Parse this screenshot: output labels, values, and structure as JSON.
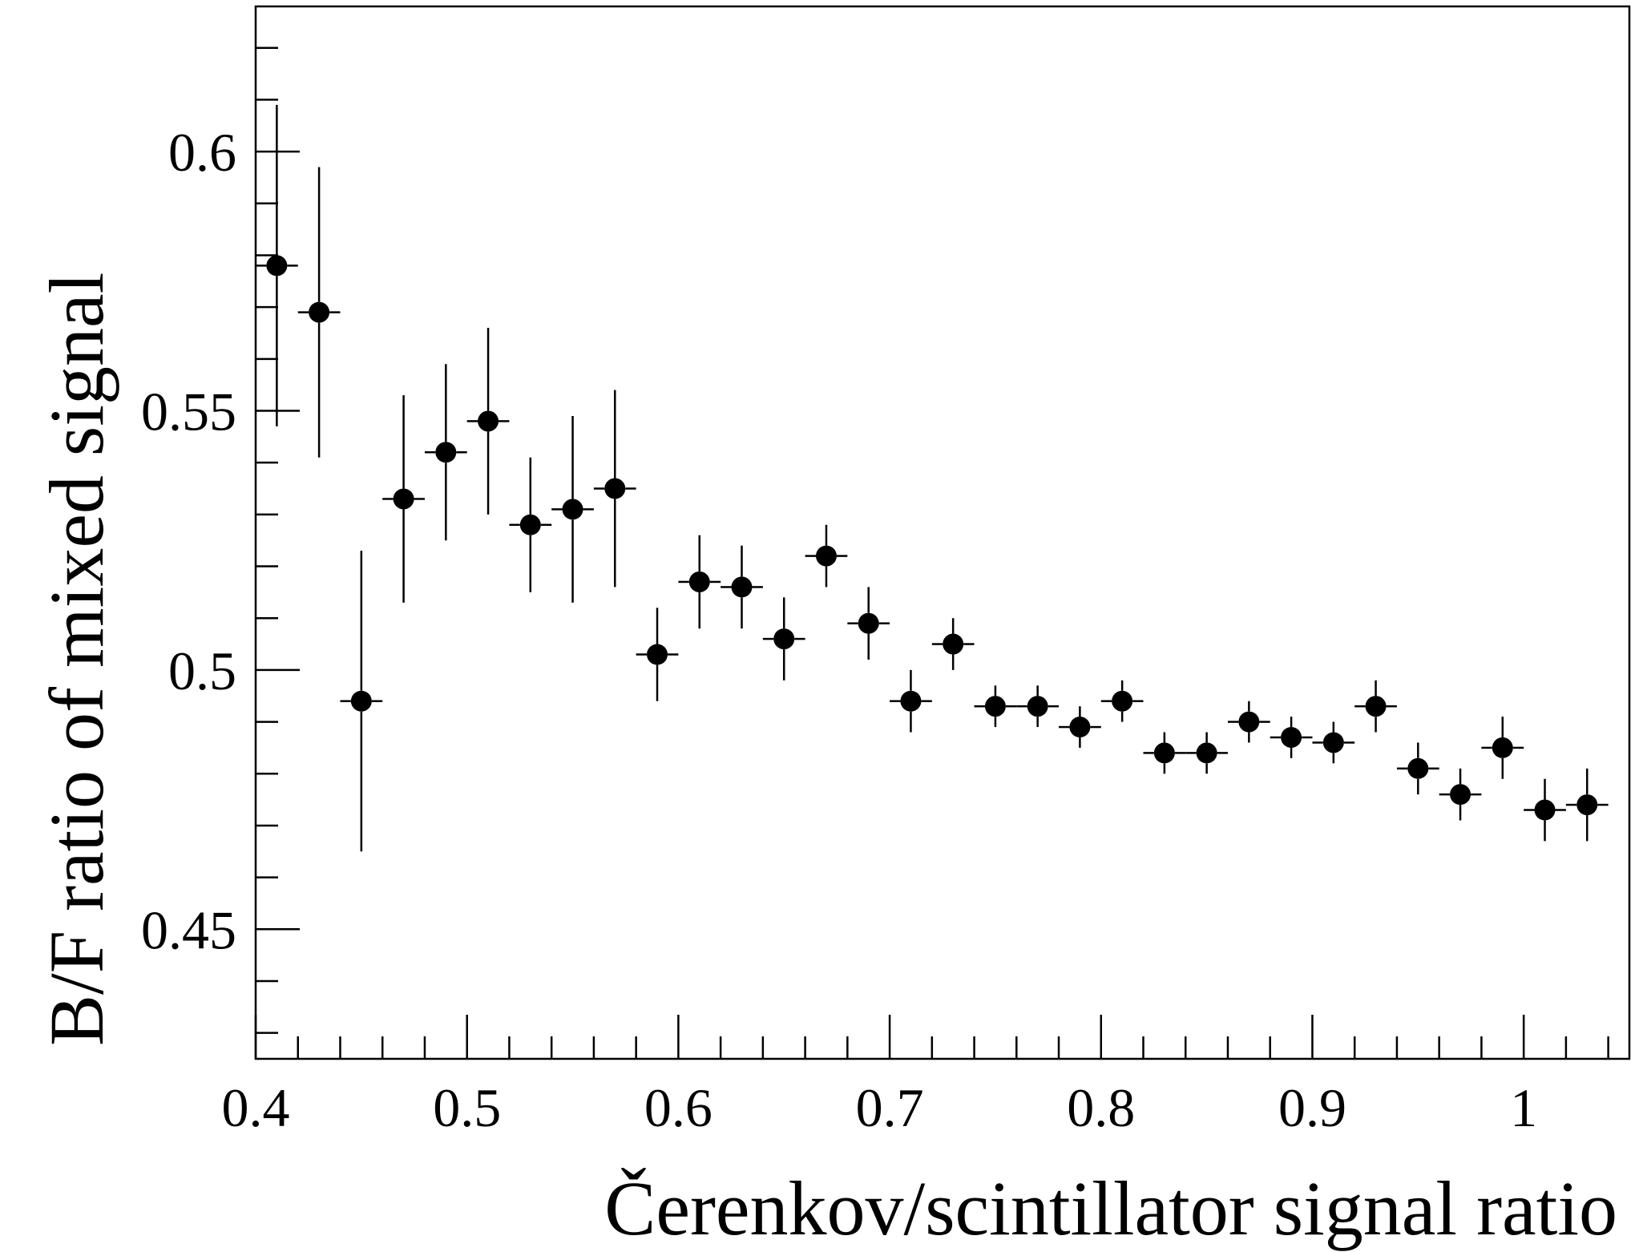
{
  "chart_data": {
    "type": "scatter",
    "title": "",
    "xlabel": "Čerenkov/scintillator signal ratio",
    "ylabel": "B/F ratio of mixed signal",
    "xlim": [
      0.4,
      1.05
    ],
    "ylim": [
      0.425,
      0.628
    ],
    "x_ticks": [
      0.4,
      0.5,
      0.6,
      0.7,
      0.8,
      0.9,
      1.0
    ],
    "x_tick_labels": [
      "0.4",
      "0.5",
      "0.6",
      "0.7",
      "0.8",
      "0.9",
      "1"
    ],
    "y_ticks": [
      0.45,
      0.5,
      0.55,
      0.6
    ],
    "y_tick_labels": [
      "0.45",
      "0.5",
      "0.55",
      "0.6"
    ],
    "grid": false,
    "marker_color": "#000000",
    "series": [
      {
        "x_halfwidth": 0.01,
        "points": [
          {
            "x": 0.41,
            "y": 0.578,
            "yerr": 0.031
          },
          {
            "x": 0.43,
            "y": 0.569,
            "yerr": 0.028
          },
          {
            "x": 0.45,
            "y": 0.494,
            "yerr": 0.029
          },
          {
            "x": 0.47,
            "y": 0.533,
            "yerr": 0.02
          },
          {
            "x": 0.49,
            "y": 0.542,
            "yerr": 0.017
          },
          {
            "x": 0.51,
            "y": 0.548,
            "yerr": 0.018
          },
          {
            "x": 0.53,
            "y": 0.528,
            "yerr": 0.013
          },
          {
            "x": 0.55,
            "y": 0.531,
            "yerr": 0.018
          },
          {
            "x": 0.57,
            "y": 0.535,
            "yerr": 0.019
          },
          {
            "x": 0.59,
            "y": 0.503,
            "yerr": 0.009
          },
          {
            "x": 0.61,
            "y": 0.517,
            "yerr": 0.009
          },
          {
            "x": 0.63,
            "y": 0.516,
            "yerr": 0.008
          },
          {
            "x": 0.65,
            "y": 0.506,
            "yerr": 0.008
          },
          {
            "x": 0.67,
            "y": 0.522,
            "yerr": 0.006
          },
          {
            "x": 0.69,
            "y": 0.509,
            "yerr": 0.007
          },
          {
            "x": 0.71,
            "y": 0.494,
            "yerr": 0.006
          },
          {
            "x": 0.73,
            "y": 0.505,
            "yerr": 0.005
          },
          {
            "x": 0.75,
            "y": 0.493,
            "yerr": 0.004
          },
          {
            "x": 0.77,
            "y": 0.493,
            "yerr": 0.004
          },
          {
            "x": 0.79,
            "y": 0.489,
            "yerr": 0.004
          },
          {
            "x": 0.81,
            "y": 0.494,
            "yerr": 0.004
          },
          {
            "x": 0.83,
            "y": 0.484,
            "yerr": 0.004
          },
          {
            "x": 0.85,
            "y": 0.484,
            "yerr": 0.004
          },
          {
            "x": 0.87,
            "y": 0.49,
            "yerr": 0.004
          },
          {
            "x": 0.89,
            "y": 0.487,
            "yerr": 0.004
          },
          {
            "x": 0.91,
            "y": 0.486,
            "yerr": 0.004
          },
          {
            "x": 0.93,
            "y": 0.493,
            "yerr": 0.005
          },
          {
            "x": 0.95,
            "y": 0.481,
            "yerr": 0.005
          },
          {
            "x": 0.97,
            "y": 0.476,
            "yerr": 0.005
          },
          {
            "x": 0.99,
            "y": 0.485,
            "yerr": 0.006
          },
          {
            "x": 1.01,
            "y": 0.473,
            "yerr": 0.006
          },
          {
            "x": 1.03,
            "y": 0.474,
            "yerr": 0.007
          }
        ]
      }
    ]
  }
}
